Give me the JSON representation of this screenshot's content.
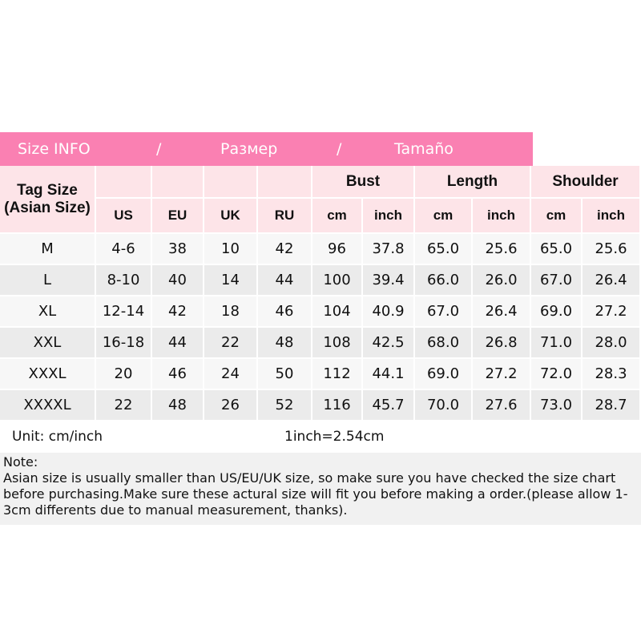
{
  "banner": [
    "Size INFO",
    "/",
    "Размер",
    "/",
    "Tamaño"
  ],
  "table": {
    "tag_header": [
      "Tag Size",
      "(Asian Size)"
    ],
    "single_headers": [
      "US",
      "EU",
      "UK",
      "RU"
    ],
    "groups": [
      "Bust",
      "Length",
      "Shoulder"
    ],
    "units": [
      "cm",
      "inch",
      "cm",
      "inch",
      "cm",
      "inch"
    ],
    "rows": [
      [
        "M",
        "4-6",
        "38",
        "10",
        "42",
        "96",
        "37.8",
        "65.0",
        "25.6",
        "65.0",
        "25.6"
      ],
      [
        "L",
        "8-10",
        "40",
        "14",
        "44",
        "100",
        "39.4",
        "66.0",
        "26.0",
        "67.0",
        "26.4"
      ],
      [
        "XL",
        "12-14",
        "42",
        "18",
        "46",
        "104",
        "40.9",
        "67.0",
        "26.4",
        "69.0",
        "27.2"
      ],
      [
        "XXL",
        "16-18",
        "44",
        "22",
        "48",
        "108",
        "42.5",
        "68.0",
        "26.8",
        "71.0",
        "28.0"
      ],
      [
        "XXXL",
        "20",
        "46",
        "24",
        "50",
        "112",
        "44.1",
        "69.0",
        "27.2",
        "72.0",
        "28.3"
      ],
      [
        "XXXXL",
        "22",
        "48",
        "26",
        "52",
        "116",
        "45.7",
        "70.0",
        "27.6",
        "73.0",
        "28.7"
      ]
    ]
  },
  "footer": {
    "unit": "Unit: cm/inch",
    "conversion": "1inch=2.54cm"
  },
  "note": {
    "title": "Note:",
    "body": "Asian size is usually smaller than US/EU/UK size, so make sure you have checked the size chart before purchasing.Make sure these actural size will fit you before making a order.(please allow 1-3cm differents due to manual measurement, thanks)."
  }
}
